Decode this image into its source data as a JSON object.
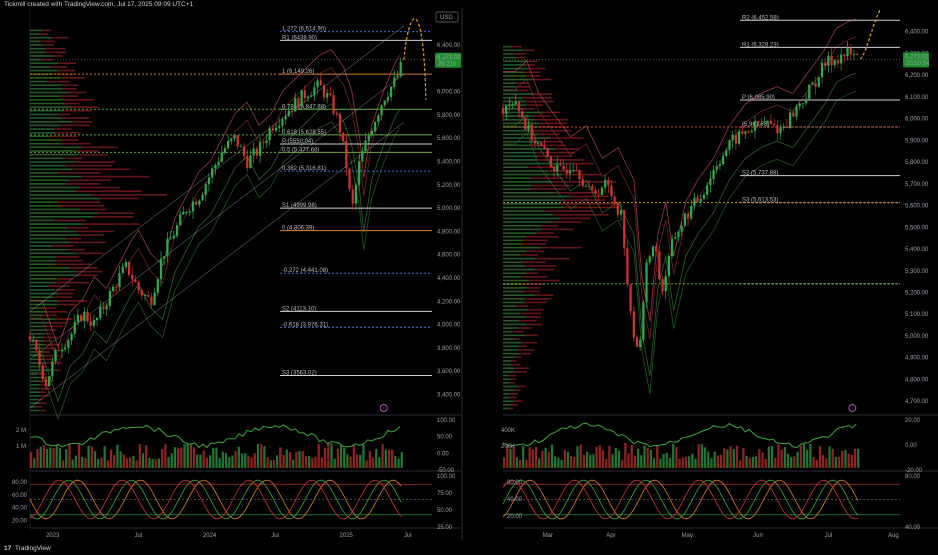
{
  "header": {
    "created_by": "Tickmill created with TradingView.com, Jul 17, 2025 09:09 UTC+1"
  },
  "footer": {
    "brand": "TradingView"
  },
  "chart_data": [
    {
      "type": "candlestick",
      "panel": "left-weekly",
      "currency": "USD",
      "price_axis": [
        "6,400.00",
        "6,000.00",
        "5,800.00",
        "5,600.00",
        "5,400.00",
        "5,200.00",
        "5,000.00",
        "4,800.00",
        "4,600.00",
        "4,400.00",
        "4,200.00",
        "4,000.00",
        "3,800.00",
        "3,600.00",
        "3,400.00"
      ],
      "price_axis_values": [
        6400,
        6000,
        5800,
        5600,
        5400,
        5200,
        5000,
        4800,
        4600,
        4400,
        4200,
        4000,
        3800,
        3600,
        3400
      ],
      "ylim": [
        3250,
        6700
      ],
      "x_labels": [
        "2023",
        "Jul",
        "2024",
        "Jul",
        "2025",
        "Jul"
      ],
      "last_price": "6,273.02",
      "countdown": "3d 21h",
      "price_path": [
        [
          0,
          3900
        ],
        [
          0.02,
          3700
        ],
        [
          0.04,
          3500
        ],
        [
          0.07,
          3800
        ],
        [
          0.1,
          3900
        ],
        [
          0.13,
          4100
        ],
        [
          0.16,
          4000
        ],
        [
          0.19,
          4200
        ],
        [
          0.22,
          4400
        ],
        [
          0.24,
          4500
        ],
        [
          0.27,
          4300
        ],
        [
          0.3,
          4200
        ],
        [
          0.33,
          4600
        ],
        [
          0.36,
          4800
        ],
        [
          0.39,
          5000
        ],
        [
          0.42,
          5100
        ],
        [
          0.45,
          5300
        ],
        [
          0.48,
          5500
        ],
        [
          0.51,
          5600
        ],
        [
          0.54,
          5400
        ],
        [
          0.57,
          5500
        ],
        [
          0.6,
          5700
        ],
        [
          0.63,
          5800
        ],
        [
          0.66,
          5900
        ],
        [
          0.69,
          6000
        ],
        [
          0.72,
          6050
        ],
        [
          0.75,
          5900
        ],
        [
          0.77,
          5700
        ],
        [
          0.79,
          5300
        ],
        [
          0.8,
          4950
        ],
        [
          0.82,
          5400
        ],
        [
          0.85,
          5700
        ],
        [
          0.88,
          5950
        ],
        [
          0.91,
          6100
        ],
        [
          0.93,
          6273
        ]
      ],
      "levels": [
        {
          "label": "1.272 (6,514.90)",
          "value": 6514.9,
          "color": "#3a6fd8",
          "style": "dotted"
        },
        {
          "label": "R1 (6438.90)",
          "value": 6438.9,
          "color": "#d0d0d0",
          "style": "solid"
        },
        {
          "label": "1 (6,149.26)",
          "value": 6149.26,
          "color": "#e07f2a",
          "style": "dotted"
        },
        {
          "label": "0.786 (5,847.88)",
          "value": 5847.88,
          "color": "#6fb24a",
          "style": "dotted"
        },
        {
          "label": "0.618 (5,628.55)",
          "value": 5628.55,
          "color": "#6fb24a",
          "style": "dotted"
        },
        {
          "label": "P (5550.04)",
          "value": 5550.04,
          "color": "#d0d0d0",
          "style": "solid"
        },
        {
          "label": "0.5 (5,477.68)",
          "value": 5477.68,
          "color": "#6fb24a",
          "style": "dotted"
        },
        {
          "label": "0.382 (5,316.81)",
          "value": 5316.81,
          "color": "#3a6fd8",
          "style": "dotted"
        },
        {
          "label": "S1 (4999.98)",
          "value": 4999.98,
          "color": "#d0d0d0",
          "style": "solid"
        },
        {
          "label": "0 (4,806.39)",
          "value": 4806.39,
          "color": "#e07f2a",
          "style": "solid"
        },
        {
          "label": "-0.272 (4,441.08)",
          "value": 4441.08,
          "color": "#3a6fd8",
          "style": "dotted"
        },
        {
          "label": "S2 (4113.10)",
          "value": 4113.1,
          "color": "#d0d0d0",
          "style": "solid"
        },
        {
          "label": "-0.618 (3,976.31)",
          "value": 3976.31,
          "color": "#3a6fd8",
          "style": "dotted"
        },
        {
          "label": "S3 (3563.02)",
          "value": 3563.02,
          "color": "#d0d0d0",
          "style": "solid"
        }
      ],
      "volume_axis": [
        "2 M",
        "1 M"
      ],
      "osc1_axis": [
        "100.00",
        "50.00",
        "0.00",
        "-50.00"
      ],
      "osc2_axis": [
        "100.00",
        "75.00",
        "50.00",
        "25.00"
      ],
      "osc2_left_axis": [
        "80.00",
        "60.00",
        "40.00",
        "20.00"
      ]
    },
    {
      "type": "candlestick",
      "panel": "right-daily",
      "price_axis": [
        "6,400.00",
        "6,300.00",
        "6,200.00",
        "6,100.00",
        "6,000.00",
        "5,900.00",
        "5,800.00",
        "5,700.00",
        "5,600.00",
        "5,500.00",
        "5,400.00",
        "5,300.00",
        "5,200.00",
        "5,100.00",
        "5,000.00",
        "4,900.00",
        "4,800.00",
        "4,700.00"
      ],
      "price_axis_values": [
        6400,
        6300,
        6200,
        6100,
        6000,
        5900,
        5800,
        5700,
        5600,
        5500,
        5400,
        5300,
        5200,
        5100,
        5000,
        4900,
        4800,
        4700
      ],
      "ylim": [
        4650,
        6500
      ],
      "x_labels": [
        "Mar",
        "Apr",
        "May",
        "Jun",
        "Jul",
        "Aug"
      ],
      "last_price": "6,273.02",
      "countdown": "20:50:34",
      "price_path": [
        [
          0,
          6050
        ],
        [
          0.03,
          6100
        ],
        [
          0.06,
          5950
        ],
        [
          0.1,
          5850
        ],
        [
          0.14,
          5750
        ],
        [
          0.18,
          5800
        ],
        [
          0.22,
          5650
        ],
        [
          0.26,
          5700
        ],
        [
          0.3,
          5550
        ],
        [
          0.32,
          5100
        ],
        [
          0.34,
          4900
        ],
        [
          0.36,
          5300
        ],
        [
          0.38,
          5450
        ],
        [
          0.4,
          5200
        ],
        [
          0.43,
          5450
        ],
        [
          0.46,
          5550
        ],
        [
          0.5,
          5650
        ],
        [
          0.54,
          5800
        ],
        [
          0.58,
          5900
        ],
        [
          0.62,
          5950
        ],
        [
          0.66,
          5980
        ],
        [
          0.7,
          5950
        ],
        [
          0.74,
          6050
        ],
        [
          0.78,
          6150
        ],
        [
          0.81,
          6250
        ],
        [
          0.84,
          6280
        ],
        [
          0.87,
          6300
        ],
        [
          0.9,
          6273
        ]
      ],
      "levels": [
        {
          "label": "R2 (6,452.58)",
          "value": 6452.58,
          "color": "#d0d0d0",
          "style": "solid"
        },
        {
          "label": "R1 (6,328.23)",
          "value": 6328.23,
          "color": "#d0d0d0",
          "style": "solid"
        },
        {
          "label": "P (6,085.90)",
          "value": 6085.9,
          "color": "#d0d0d0",
          "style": "solid"
        },
        {
          "label": "(5,961.78)",
          "value": 5961.78,
          "color": "#e05a3a",
          "style": "dotted"
        },
        {
          "label": "S2 (5,737.88)",
          "value": 5737.88,
          "color": "#d0d0d0",
          "style": "solid"
        },
        {
          "label": "S3 (5,613.53)",
          "value": 5613.53,
          "color": "#e0a030",
          "style": "dotted"
        },
        {
          "label": "",
          "value": 5240,
          "color": "#6fb24a",
          "style": "dotted"
        }
      ],
      "volume_axis": [
        "400K",
        "200K"
      ],
      "osc1_axis": [
        "20.00",
        "0.00",
        "-20.00"
      ],
      "osc2_axis": [
        "80.00",
        "40.00"
      ],
      "osc2_left_axis": [
        "80.00",
        "40.00",
        "20.00"
      ]
    }
  ],
  "colors": {
    "background": "#000000",
    "bull": "#2eaa4a",
    "bear": "#d23232",
    "volume_profile_bear": "#8a1e1e",
    "volume_profile_bull": "#2f7a2f",
    "bands": "#c24a4a",
    "price_tag": "#1f8f2f",
    "forecast": "#e8a020"
  }
}
